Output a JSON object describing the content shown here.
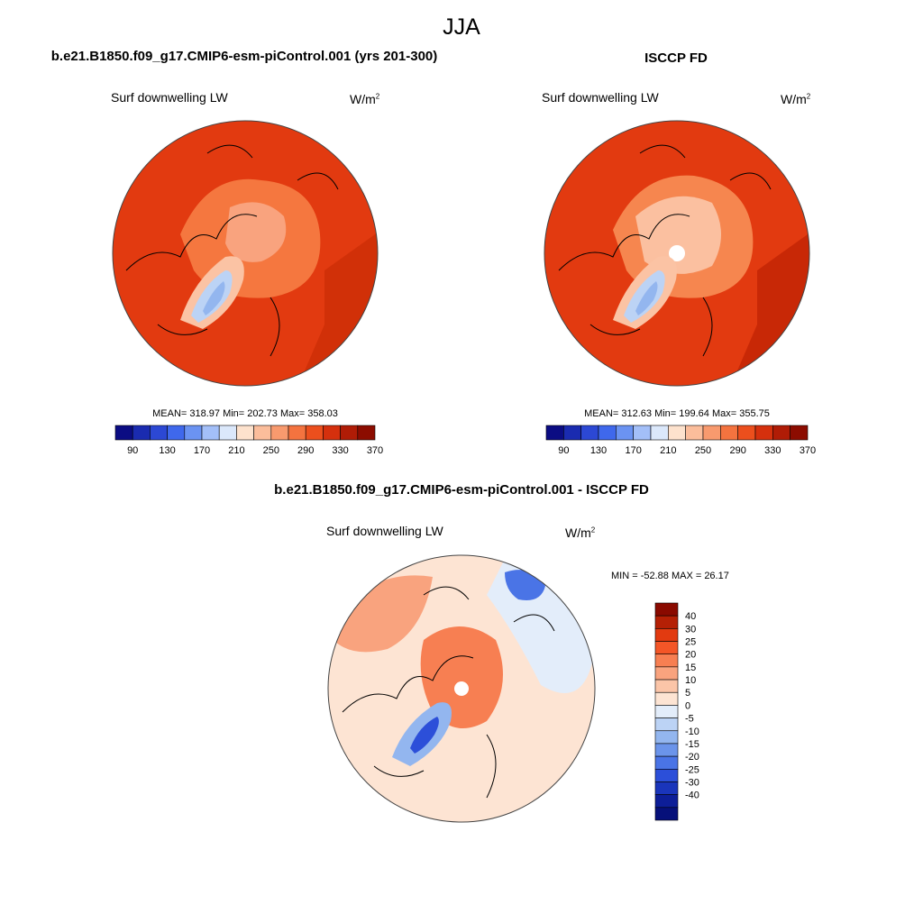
{
  "title": "JJA",
  "panels": {
    "model": {
      "title": "b.e21.B1850.f09_g17.CMIP6-esm-piControl.001 (yrs 201-300)",
      "variable": "Surf downwelling LW",
      "units_base": "W/m",
      "units_exp": "2",
      "stats": "MEAN= 318.97  Min= 202.73  Max= 358.03"
    },
    "obs": {
      "title": "ISCCP FD",
      "variable": "Surf downwelling LW",
      "units_base": "W/m",
      "units_exp": "2",
      "stats": "MEAN= 312.63  Min= 199.64  Max= 355.75"
    },
    "diff": {
      "title": "b.e21.B1850.f09_g17.CMIP6-esm-piControl.001 - ISCCP FD",
      "variable": "Surf downwelling LW",
      "units_base": "W/m",
      "units_exp": "2",
      "stats": "MIN = -52.88 MAX =  26.17"
    }
  },
  "colorbars": {
    "absolute": {
      "colors": [
        "#0b0c83",
        "#1a2bb0",
        "#2c48d4",
        "#3f68ec",
        "#6b93f2",
        "#a3bff8",
        "#dbe8fb",
        "#fde2cd",
        "#fbbd9b",
        "#f89a6e",
        "#f4733f",
        "#ec4f1d",
        "#d5300d",
        "#b01c06",
        "#8c0c00"
      ],
      "tick_labels": [
        "90",
        "130",
        "170",
        "210",
        "250",
        "290",
        "330",
        "370"
      ]
    },
    "difference": {
      "colors": [
        "#8a0a00",
        "#b52005",
        "#e23a10",
        "#f45627",
        "#f77f52",
        "#f9a37e",
        "#fbc5a8",
        "#fde4d3",
        "#e3edfa",
        "#bcd3f5",
        "#93b6ef",
        "#6b94ea",
        "#4a74e6",
        "#2c4fd9",
        "#1a35bb",
        "#0d1e98",
        "#06107a"
      ],
      "tick_labels": [
        "40",
        "30",
        "25",
        "20",
        "15",
        "10",
        "5",
        "0",
        "-5",
        "-10",
        "-15",
        "-20",
        "-25",
        "-30",
        "-40"
      ]
    }
  },
  "maps": {
    "model_fields": {
      "base": "#e23a10",
      "north_atlantic": "#d13008",
      "arctic_ocean": "#f5773f",
      "central_arctic": "#f9a37e",
      "greenland_outer": "#fbc3a4",
      "greenland_inner": "#bcd3f5",
      "greenland_core": "#93b6ef"
    },
    "obs_fields": {
      "base": "#e23a10",
      "north_atlantic": "#c82806",
      "arctic_ocean": "#f6864f",
      "central_arctic": "#fbc0a0",
      "greenland_outer": "#fbc3a4",
      "greenland_inner": "#bcd3f5",
      "greenland_core": "#93b6ef"
    },
    "diff_fields": {
      "base": "#fde4d3",
      "arctic_ocean": "#f77f52",
      "siberia": "#f9a37e",
      "pacific": "#e3edfa",
      "greenland": "#93b6ef",
      "greenland_core": "#2c4fd9",
      "alaska": "#4a74e6"
    }
  }
}
